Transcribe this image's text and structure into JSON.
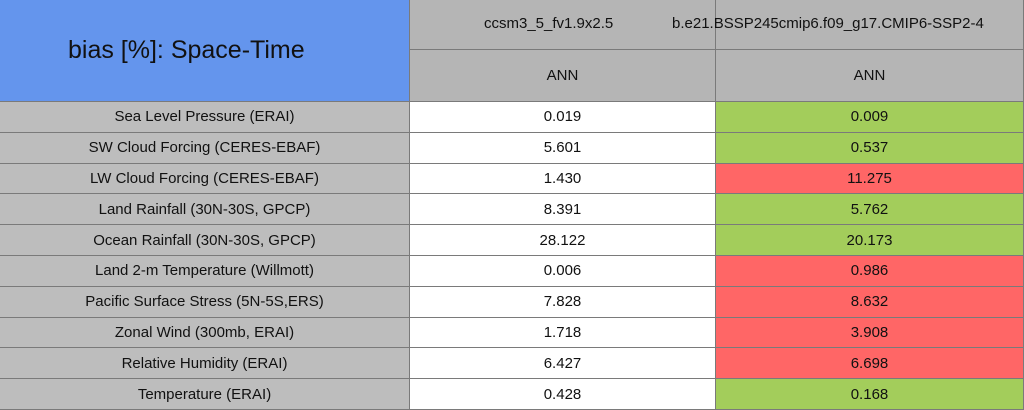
{
  "header": {
    "title": "bias [%]: Space-Time",
    "cases": [
      "ccsm3_5_fv1.9x2.5",
      "b.e21.BSSP245cmip6.f09_g17.CMIP6-SSP2-4"
    ],
    "periods": [
      "ANN",
      "ANN"
    ]
  },
  "table": {
    "rows": [
      [
        "Sea Level Pressure (ERAI)",
        "0.019",
        "0.009"
      ],
      [
        "SW Cloud Forcing (CERES-EBAF)",
        "5.601",
        "0.537"
      ],
      [
        "LW Cloud Forcing (CERES-EBAF)",
        "1.430",
        "11.275"
      ],
      [
        "Land Rainfall (30N-30S, GPCP)",
        "8.391",
        "5.762"
      ],
      [
        "Ocean Rainfall (30N-30S, GPCP)",
        "28.122",
        "20.173"
      ],
      [
        "Land 2-m Temperature (Willmott)",
        "0.006",
        "0.986"
      ],
      [
        "Pacific Surface Stress (5N-5S,ERS)",
        "7.828",
        "8.632"
      ],
      [
        "Zonal Wind (300mb, ERAI)",
        "1.718",
        "3.908"
      ],
      [
        "Relative Humidity (ERAI)",
        "6.427",
        "6.698"
      ],
      [
        "Temperature (ERAI)",
        "0.428",
        "0.168"
      ]
    ],
    "colors": [
      "#a3cd5b",
      "#a3cd5b",
      "#ff6666",
      "#a3cd5b",
      "#a3cd5b",
      "#ff6666",
      "#ff6666",
      "#ff6666",
      "#ff6666",
      "#a3cd5b"
    ]
  }
}
